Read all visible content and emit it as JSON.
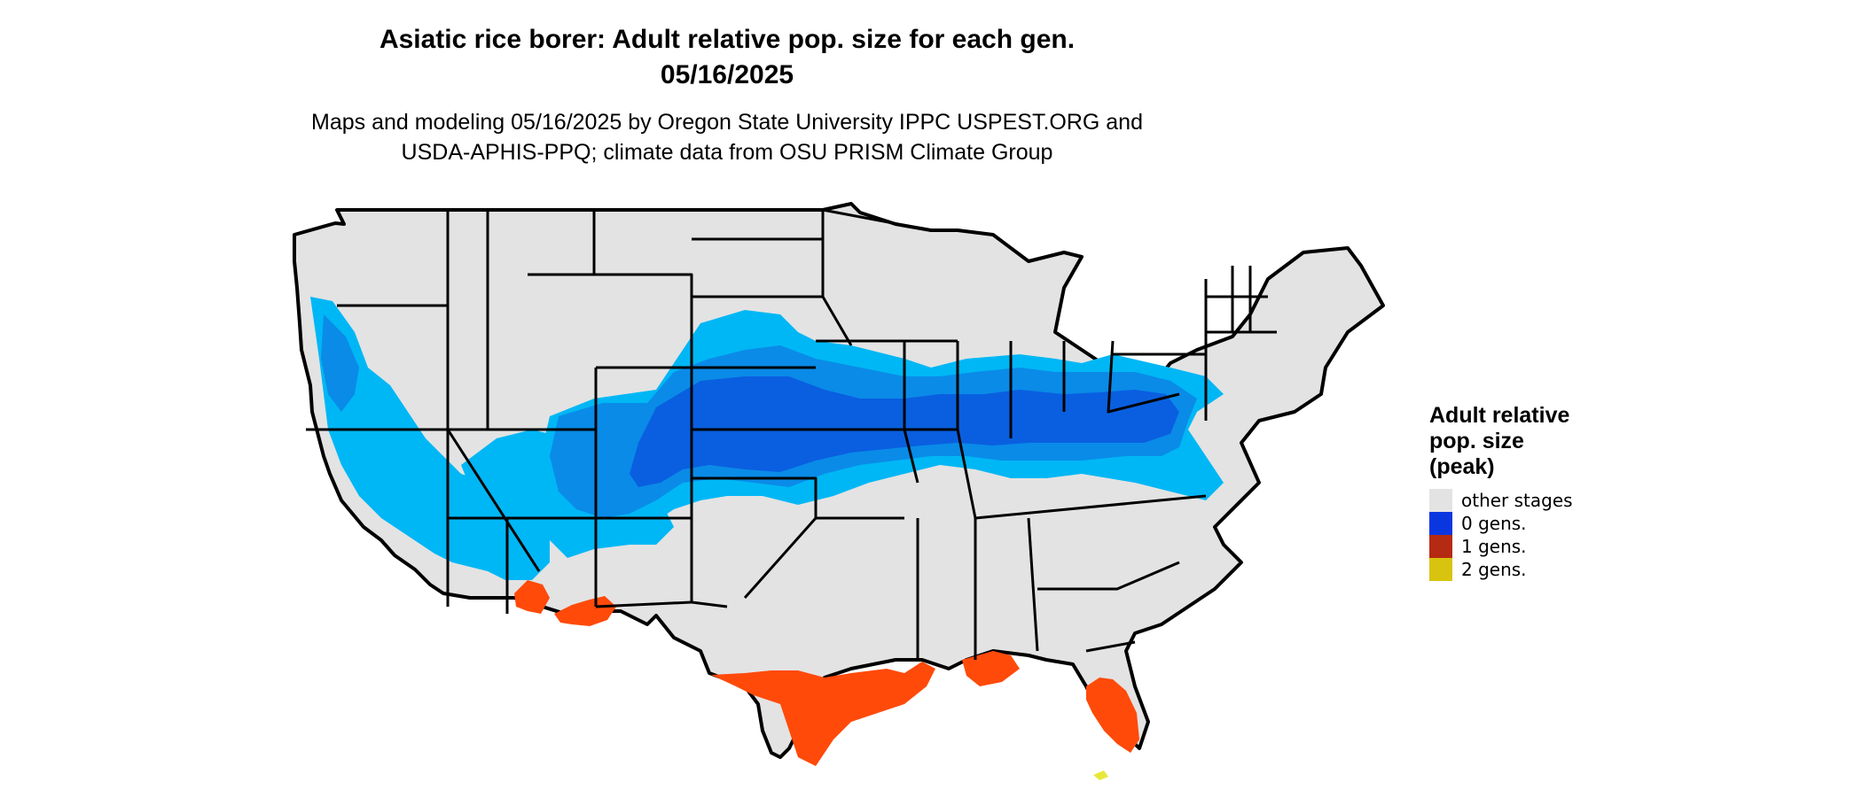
{
  "title": {
    "line1": "Asiatic rice borer: Adult relative pop. size for each gen.",
    "line2": "05/16/2025"
  },
  "subtitle": {
    "line1": "Maps and modeling 05/16/2025 by Oregon State University IPPC USPEST.ORG and",
    "line2": "USDA-APHIS-PPQ; climate data from OSU PRISM Climate Group"
  },
  "legend": {
    "title_line1": "Adult relative",
    "title_line2": "pop. size",
    "title_line3": "(peak)",
    "items": [
      {
        "label": "other stages",
        "color": "#e3e3e3"
      },
      {
        "label": "0 gens.",
        "color": "#0a36e0"
      },
      {
        "label": "1 gens.",
        "color": "#b52a12"
      },
      {
        "label": "2 gens.",
        "color": "#d8c40e"
      }
    ]
  },
  "map_colors": {
    "land": "#e3e3e3",
    "border": "#000000",
    "light_blue": "#00b7f5",
    "mid_blue": "#0a8be8",
    "dark_blue": "#0a5fe0",
    "orange": "#ff4a0a",
    "yellow": "#e8e83a"
  }
}
